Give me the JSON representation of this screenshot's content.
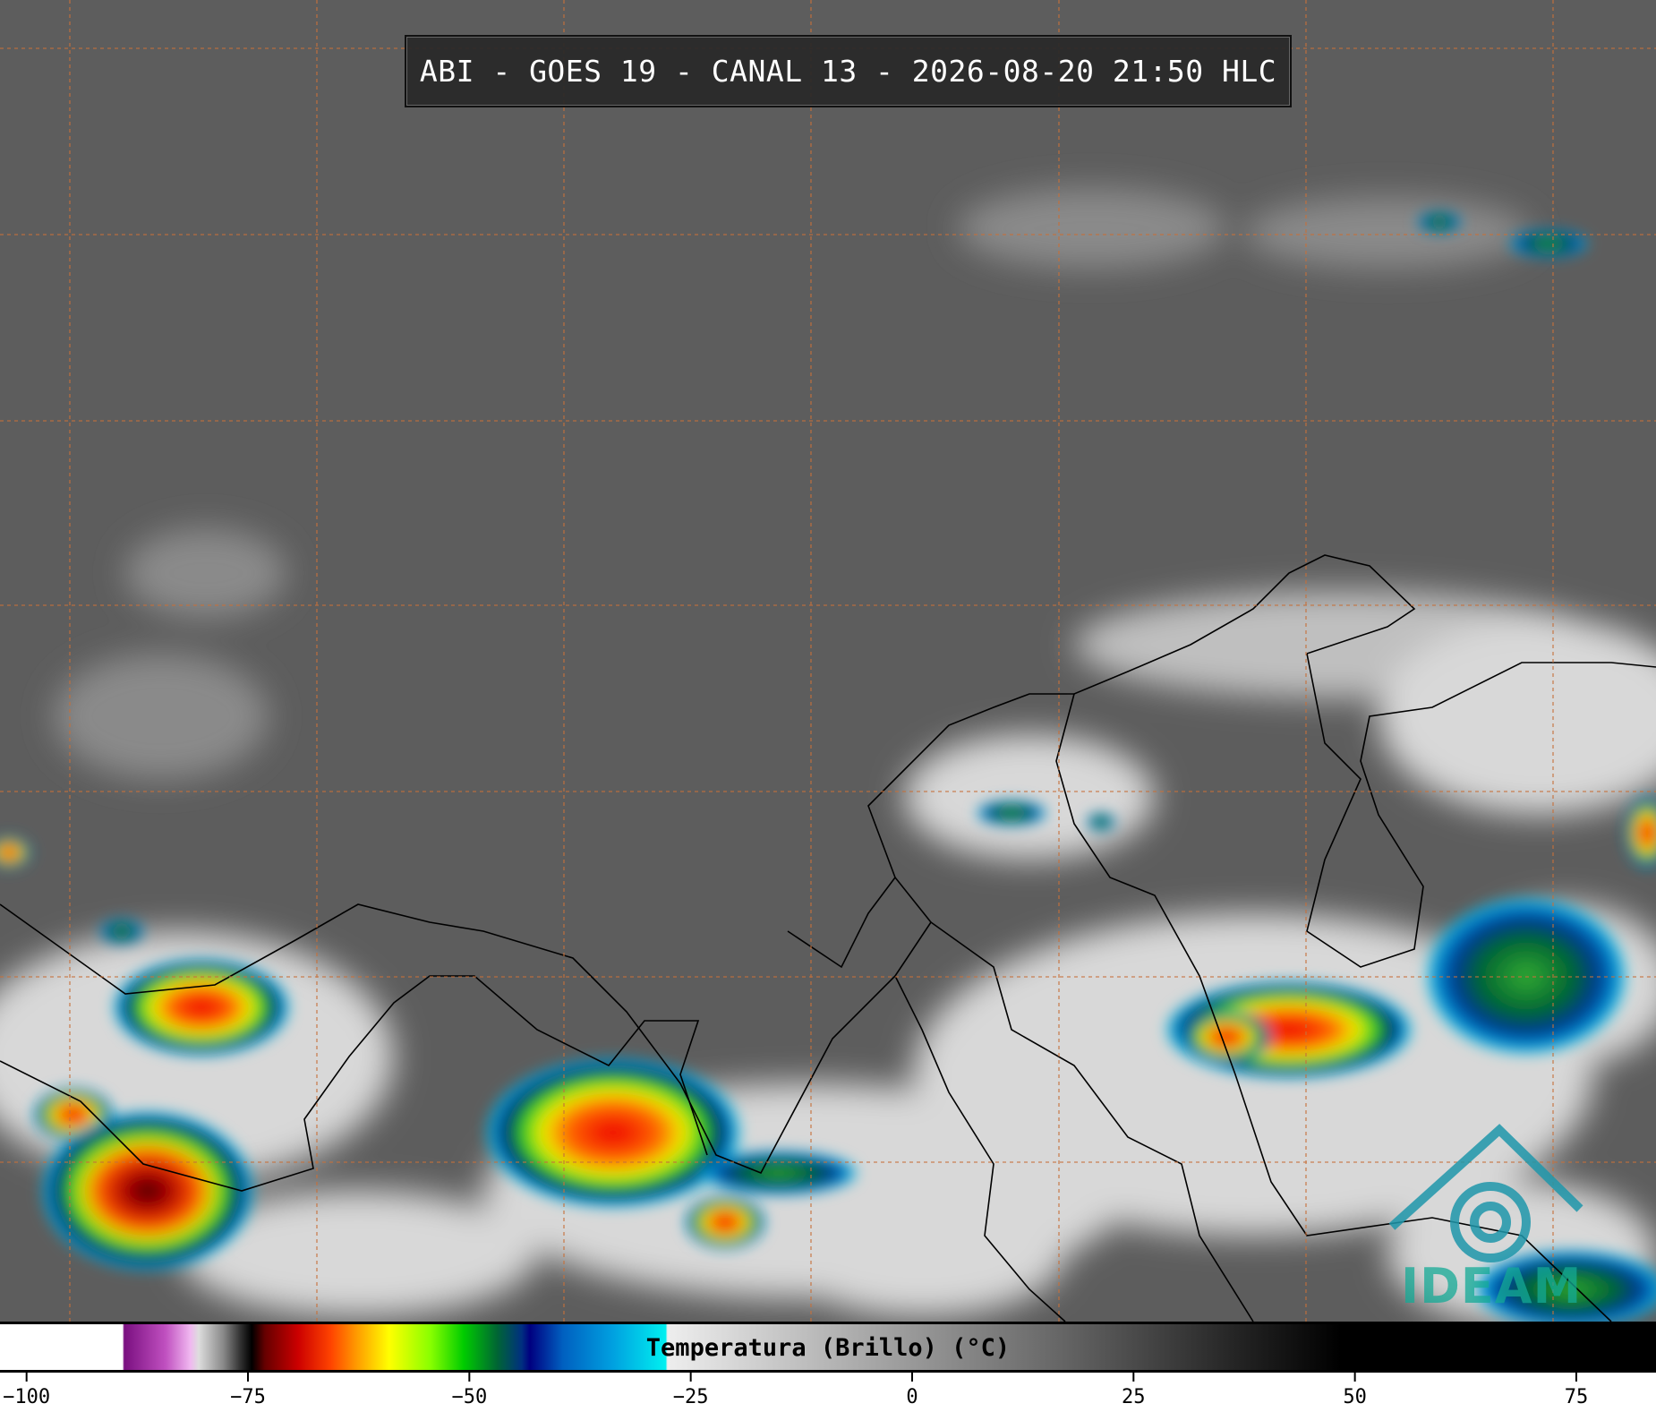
{
  "header": {
    "title": "ABI - GOES 19 - CANAL 13 - 2026-08-20 21:50 HLC"
  },
  "colorbar": {
    "label": "Temperatura (Brillo) (°C)",
    "xlim": [
      -103,
      84
    ],
    "xticks": [
      {
        "value": -100,
        "label": "−100"
      },
      {
        "value": -75,
        "label": "−75"
      },
      {
        "value": -50,
        "label": "−50"
      },
      {
        "value": -25,
        "label": "−25"
      },
      0,
      25,
      50,
      75
    ]
  },
  "logo": {
    "text": "IDEAM"
  }
}
